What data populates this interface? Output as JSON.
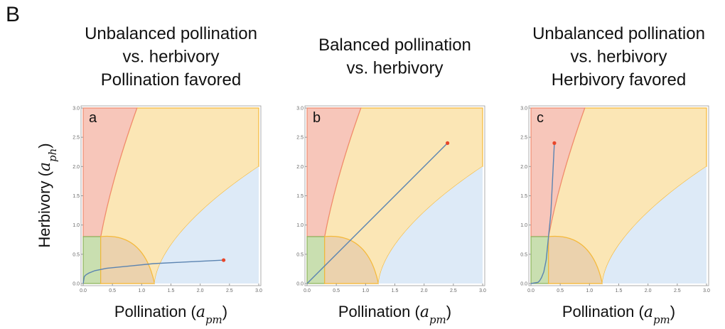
{
  "figure_label": "B",
  "ylabel": [
    "Herbivory (",
    "a",
    "ph",
    ")"
  ],
  "chart_data": [
    {
      "type": "line",
      "panel": "a",
      "title": [
        "Unbalanced pollination",
        "vs. herbivory",
        "Pollination favored"
      ],
      "xlabel": [
        "Pollination (",
        "a",
        "pm",
        ")"
      ],
      "xlim": [
        0,
        3
      ],
      "ylim": [
        0,
        3
      ],
      "xticks": [
        {
          "value": 0,
          "label": "0.0"
        },
        {
          "value": 0.5,
          "label": "0.5"
        },
        {
          "value": 1,
          "label": "1.0"
        },
        {
          "value": 1.5,
          "label": "1.5"
        },
        {
          "value": 2,
          "label": "2.0"
        },
        {
          "value": 2.5,
          "label": "2.5"
        },
        {
          "value": 3,
          "label": "3.0"
        }
      ],
      "yticks": [
        {
          "value": 0,
          "label": "0.0"
        },
        {
          "value": 0.5,
          "label": "0.5"
        },
        {
          "value": 1,
          "label": "1.0"
        },
        {
          "value": 1.5,
          "label": "1.5"
        },
        {
          "value": 2,
          "label": "2.0"
        },
        {
          "value": 2.5,
          "label": "2.5"
        },
        {
          "value": 3,
          "label": "3.0"
        }
      ],
      "series": [
        {
          "color": "#5b84b1",
          "marker_color": "#e8462a",
          "x": [
            0,
            0.02,
            0.05,
            0.1,
            0.2,
            0.4,
            0.8,
            1.2,
            1.6,
            2.0,
            2.4
          ],
          "values": [
            0,
            0.12,
            0.15,
            0.18,
            0.22,
            0.26,
            0.3,
            0.34,
            0.36,
            0.38,
            0.4
          ]
        }
      ]
    },
    {
      "type": "line",
      "panel": "b",
      "title": [
        "Balanced pollination",
        "vs. herbivory"
      ],
      "xlabel": [
        "Pollination (",
        "a",
        "pm",
        ")"
      ],
      "xlim": [
        0,
        3
      ],
      "ylim": [
        0,
        3
      ],
      "xticks": [
        {
          "value": 0,
          "label": "0.0"
        },
        {
          "value": 0.5,
          "label": "0.5"
        },
        {
          "value": 1,
          "label": "1.0"
        },
        {
          "value": 1.5,
          "label": "1.5"
        },
        {
          "value": 2,
          "label": "2.0"
        },
        {
          "value": 2.5,
          "label": "2.5"
        },
        {
          "value": 3,
          "label": "3.0"
        }
      ],
      "yticks": [
        {
          "value": 0,
          "label": "0.0"
        },
        {
          "value": 0.5,
          "label": "0.5"
        },
        {
          "value": 1,
          "label": "1.0"
        },
        {
          "value": 1.5,
          "label": "1.5"
        },
        {
          "value": 2,
          "label": "2.0"
        },
        {
          "value": 2.5,
          "label": "2.5"
        },
        {
          "value": 3,
          "label": "3.0"
        }
      ],
      "series": [
        {
          "color": "#5b84b1",
          "marker_color": "#e8462a",
          "x": [
            0,
            2.4
          ],
          "values": [
            0,
            2.4
          ]
        }
      ]
    },
    {
      "type": "line",
      "panel": "c",
      "title": [
        "Unbalanced pollination",
        "vs. herbivory",
        "Herbivory favored"
      ],
      "xlabel": [
        "Pollination (",
        "a",
        "pm",
        ")"
      ],
      "xlim": [
        0,
        3
      ],
      "ylim": [
        0,
        3
      ],
      "xticks": [
        {
          "value": 0,
          "label": "0.0"
        },
        {
          "value": 0.5,
          "label": "0.5"
        },
        {
          "value": 1,
          "label": "1.0"
        },
        {
          "value": 1.5,
          "label": "1.5"
        },
        {
          "value": 2,
          "label": "2.0"
        },
        {
          "value": 2.5,
          "label": "2.5"
        },
        {
          "value": 3,
          "label": "3.0"
        }
      ],
      "yticks": [
        {
          "value": 0,
          "label": "0.0"
        },
        {
          "value": 0.5,
          "label": "0.5"
        },
        {
          "value": 1,
          "label": "1.0"
        },
        {
          "value": 1.5,
          "label": "1.5"
        },
        {
          "value": 2,
          "label": "2.0"
        },
        {
          "value": 2.5,
          "label": "2.5"
        },
        {
          "value": 3,
          "label": "3.0"
        }
      ],
      "series": [
        {
          "color": "#5b84b1",
          "marker_color": "#e8462a",
          "x": [
            0,
            0.12,
            0.15,
            0.18,
            0.22,
            0.26,
            0.3,
            0.34,
            0.36,
            0.38,
            0.4
          ],
          "values": [
            0,
            0.02,
            0.05,
            0.1,
            0.2,
            0.4,
            0.8,
            1.2,
            1.6,
            2.0,
            2.4
          ]
        }
      ]
    }
  ]
}
